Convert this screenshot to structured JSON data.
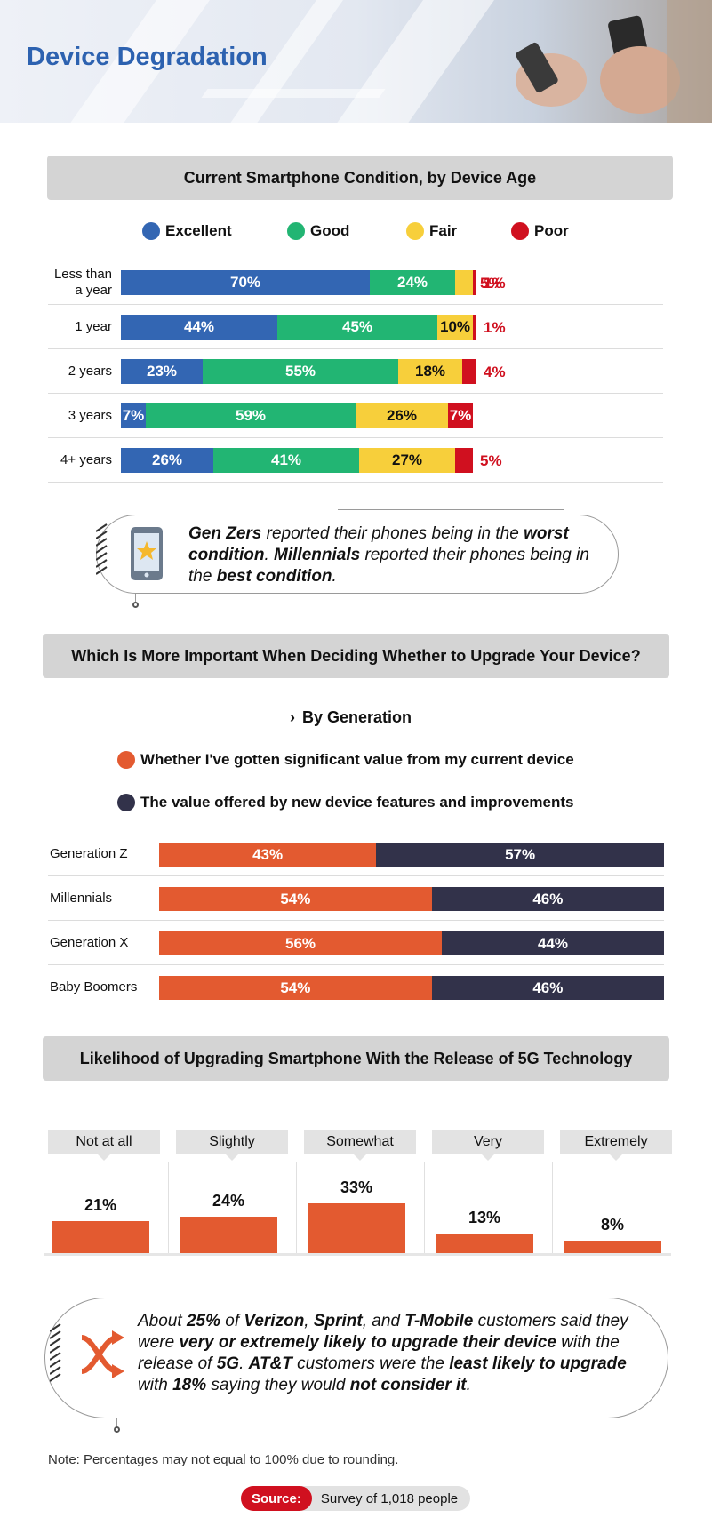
{
  "header": {
    "title": "Device Degradation"
  },
  "colors": {
    "excellent": "#3366b3",
    "good": "#22b573",
    "fair": "#f7cf3b",
    "poor": "#d0101f",
    "orange": "#e35a30",
    "navy": "#32324a",
    "accent_blue": "#2d62b0"
  },
  "chart_data": [
    {
      "type": "bar",
      "orientation": "horizontal",
      "stacked": true,
      "title": "Current Smartphone Condition, by Device Age",
      "categories": [
        "Less than a year",
        "1 year",
        "2 years",
        "3 years",
        "4+ years"
      ],
      "series": [
        {
          "name": "Excellent",
          "values": [
            70,
            44,
            23,
            7,
            26
          ],
          "labels": [
            "70%",
            "44%",
            "23%",
            "7%",
            "26%"
          ]
        },
        {
          "name": "Good",
          "values": [
            24,
            45,
            55,
            59,
            41
          ],
          "labels": [
            "24%",
            "45%",
            "55%",
            "59%",
            "41%"
          ]
        },
        {
          "name": "Fair",
          "values": [
            5,
            10,
            18,
            26,
            27
          ],
          "labels": [
            "5%",
            "10%",
            "18%",
            "26%",
            "27%"
          ]
        },
        {
          "name": "Poor",
          "values": [
            1,
            1,
            4,
            7,
            5
          ],
          "labels": [
            "1%",
            "1%",
            "4%",
            "7%",
            "5%"
          ]
        }
      ],
      "legend": "top"
    },
    {
      "type": "bar",
      "orientation": "horizontal",
      "stacked": true,
      "title": "Which Is More Important When Deciding Whether to Upgrade Your Device?",
      "subtitle": "By Generation",
      "categories": [
        "Generation Z",
        "Millennials",
        "Generation X",
        "Baby Boomers"
      ],
      "series": [
        {
          "name": "Whether I've gotten significant value from my current device",
          "values": [
            43,
            54,
            56,
            54
          ],
          "labels": [
            "43%",
            "54%",
            "56%",
            "54%"
          ]
        },
        {
          "name": "The value offered by new device features and improvements",
          "values": [
            57,
            46,
            44,
            46
          ],
          "labels": [
            "57%",
            "46%",
            "44%",
            "46%"
          ]
        }
      ],
      "legend": "top"
    },
    {
      "type": "bar",
      "title": "Likelihood of Upgrading Smartphone With the Release of 5G Technology",
      "categories": [
        "Not at all",
        "Slightly",
        "Somewhat",
        "Very",
        "Extremely"
      ],
      "values": [
        21,
        24,
        33,
        13,
        8
      ],
      "labels": [
        "21%",
        "24%",
        "33%",
        "13%",
        "8%"
      ]
    }
  ],
  "callouts": {
    "gen_z": {
      "parts": [
        {
          "t": "Gen Zers",
          "b": true
        },
        {
          "t": " reported their phones being in the ",
          "b": false
        },
        {
          "t": "worst condition",
          "b": true
        },
        {
          "t": ". ",
          "b": false
        },
        {
          "t": "Millennials",
          "b": true
        },
        {
          "t": " reported their phones being in the ",
          "b": false
        },
        {
          "t": "best condition",
          "b": true
        },
        {
          "t": ".",
          "b": false
        }
      ]
    },
    "carriers": {
      "parts": [
        {
          "t": "About ",
          "b": false
        },
        {
          "t": "25%",
          "b": true
        },
        {
          "t": " of ",
          "b": false
        },
        {
          "t": "Verizon",
          "b": true
        },
        {
          "t": ", ",
          "b": false
        },
        {
          "t": "Sprint",
          "b": true
        },
        {
          "t": ", and ",
          "b": false
        },
        {
          "t": "T-Mobile",
          "b": true
        },
        {
          "t": " customers said they were ",
          "b": false
        },
        {
          "t": "very or extremely likely to upgrade their device",
          "b": true
        },
        {
          "t": " with the release of ",
          "b": false
        },
        {
          "t": "5G",
          "b": true
        },
        {
          "t": ". ",
          "b": false
        },
        {
          "t": "AT&T",
          "b": true
        },
        {
          "t": " customers were the ",
          "b": false
        },
        {
          "t": "least likely to upgrade",
          "b": true
        },
        {
          "t": " with ",
          "b": false
        },
        {
          "t": "18%",
          "b": true
        },
        {
          "t": " saying they would ",
          "b": false
        },
        {
          "t": "not consider it",
          "b": true
        },
        {
          "t": ".",
          "b": false
        }
      ]
    }
  },
  "footer": {
    "note": "Note: Percentages may not equal to 100% due to rounding.",
    "source_label": "Source:",
    "source_text": "Survey of 1,018 people"
  }
}
